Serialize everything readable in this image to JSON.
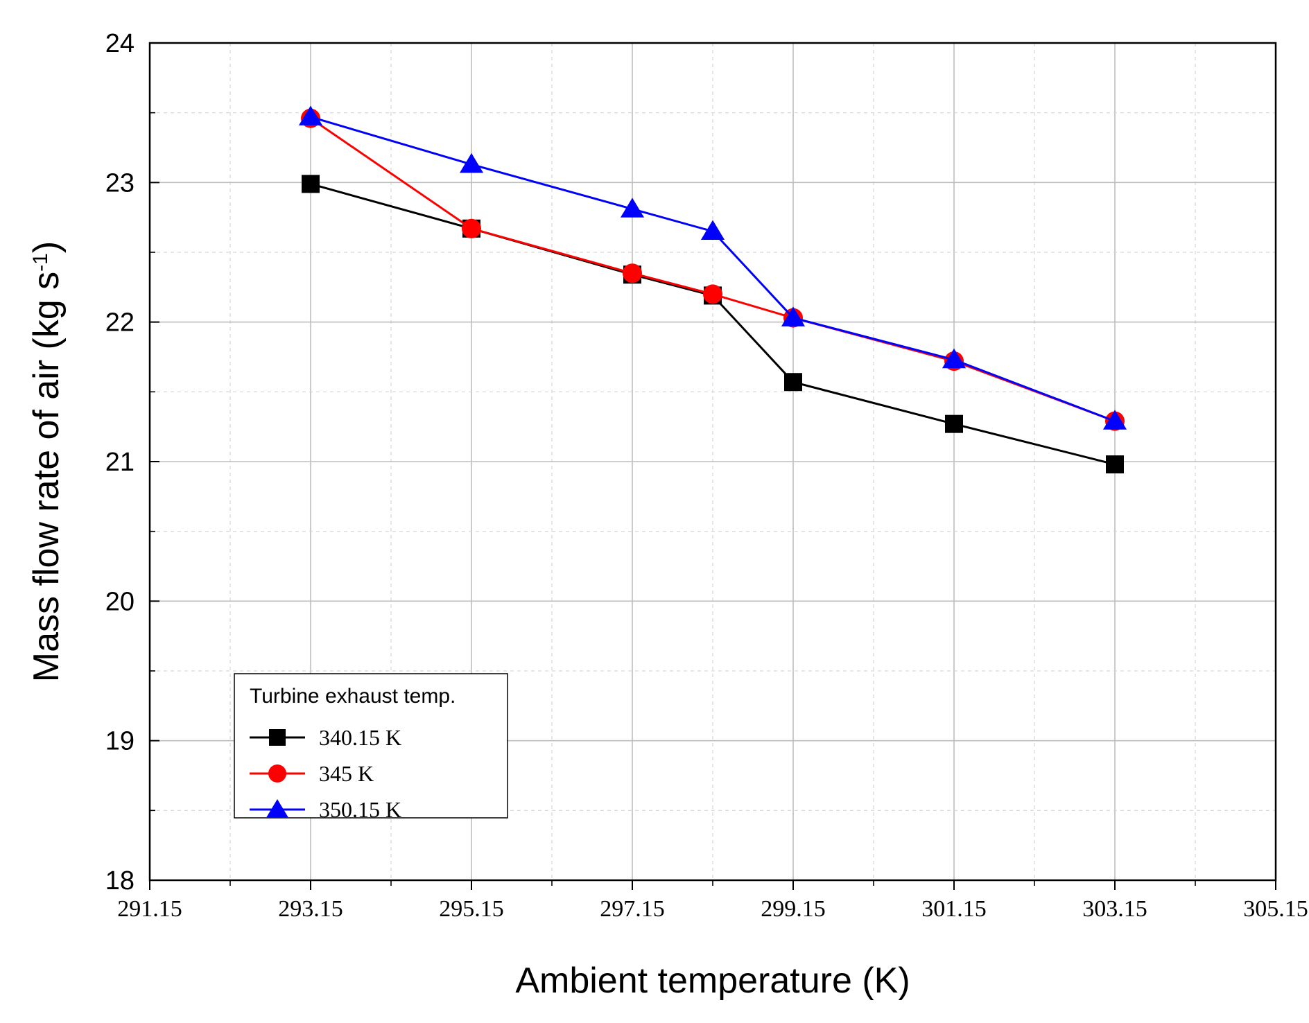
{
  "chart_data": {
    "type": "line",
    "xlabel": "Ambient temperature (K)",
    "ylabel_main": "Mass flow rate of air (kg s",
    "ylabel_sup": "-1",
    "ylabel_close": ")",
    "xlim": [
      291.15,
      305.15
    ],
    "ylim": [
      18,
      24
    ],
    "x_ticks": [
      "291.15",
      "293.15",
      "295.15",
      "297.15",
      "299.15",
      "301.15",
      "303.15",
      "305.15"
    ],
    "x_tick_values": [
      291.15,
      293.15,
      295.15,
      297.15,
      299.15,
      301.15,
      303.15,
      305.15
    ],
    "y_ticks": [
      "18",
      "19",
      "20",
      "21",
      "22",
      "23",
      "24"
    ],
    "y_tick_values": [
      18,
      19,
      20,
      21,
      22,
      23,
      24
    ],
    "grid": true,
    "legend": {
      "title": "Turbine exhaust temp.",
      "position": "lower-left"
    },
    "series": [
      {
        "name": "340.15 K",
        "color": "#000000",
        "marker": "square",
        "x": [
          293.15,
          295.15,
          297.15,
          298.15,
          299.15,
          301.15,
          303.15
        ],
        "y": [
          22.99,
          22.67,
          22.34,
          22.19,
          21.57,
          21.27,
          20.98
        ]
      },
      {
        "name": "345 K",
        "color": "#ff0000",
        "marker": "circle",
        "x": [
          293.15,
          295.15,
          297.15,
          298.15,
          299.15,
          301.15,
          303.15
        ],
        "y": [
          23.46,
          22.67,
          22.35,
          22.2,
          22.03,
          21.72,
          21.29
        ]
      },
      {
        "name": "350.15 K",
        "color": "#0000ff",
        "marker": "triangle",
        "x": [
          293.15,
          295.15,
          297.15,
          298.15,
          299.15,
          301.15,
          303.15
        ],
        "y": [
          23.47,
          23.13,
          22.81,
          22.65,
          22.03,
          21.73,
          21.29
        ]
      }
    ]
  }
}
